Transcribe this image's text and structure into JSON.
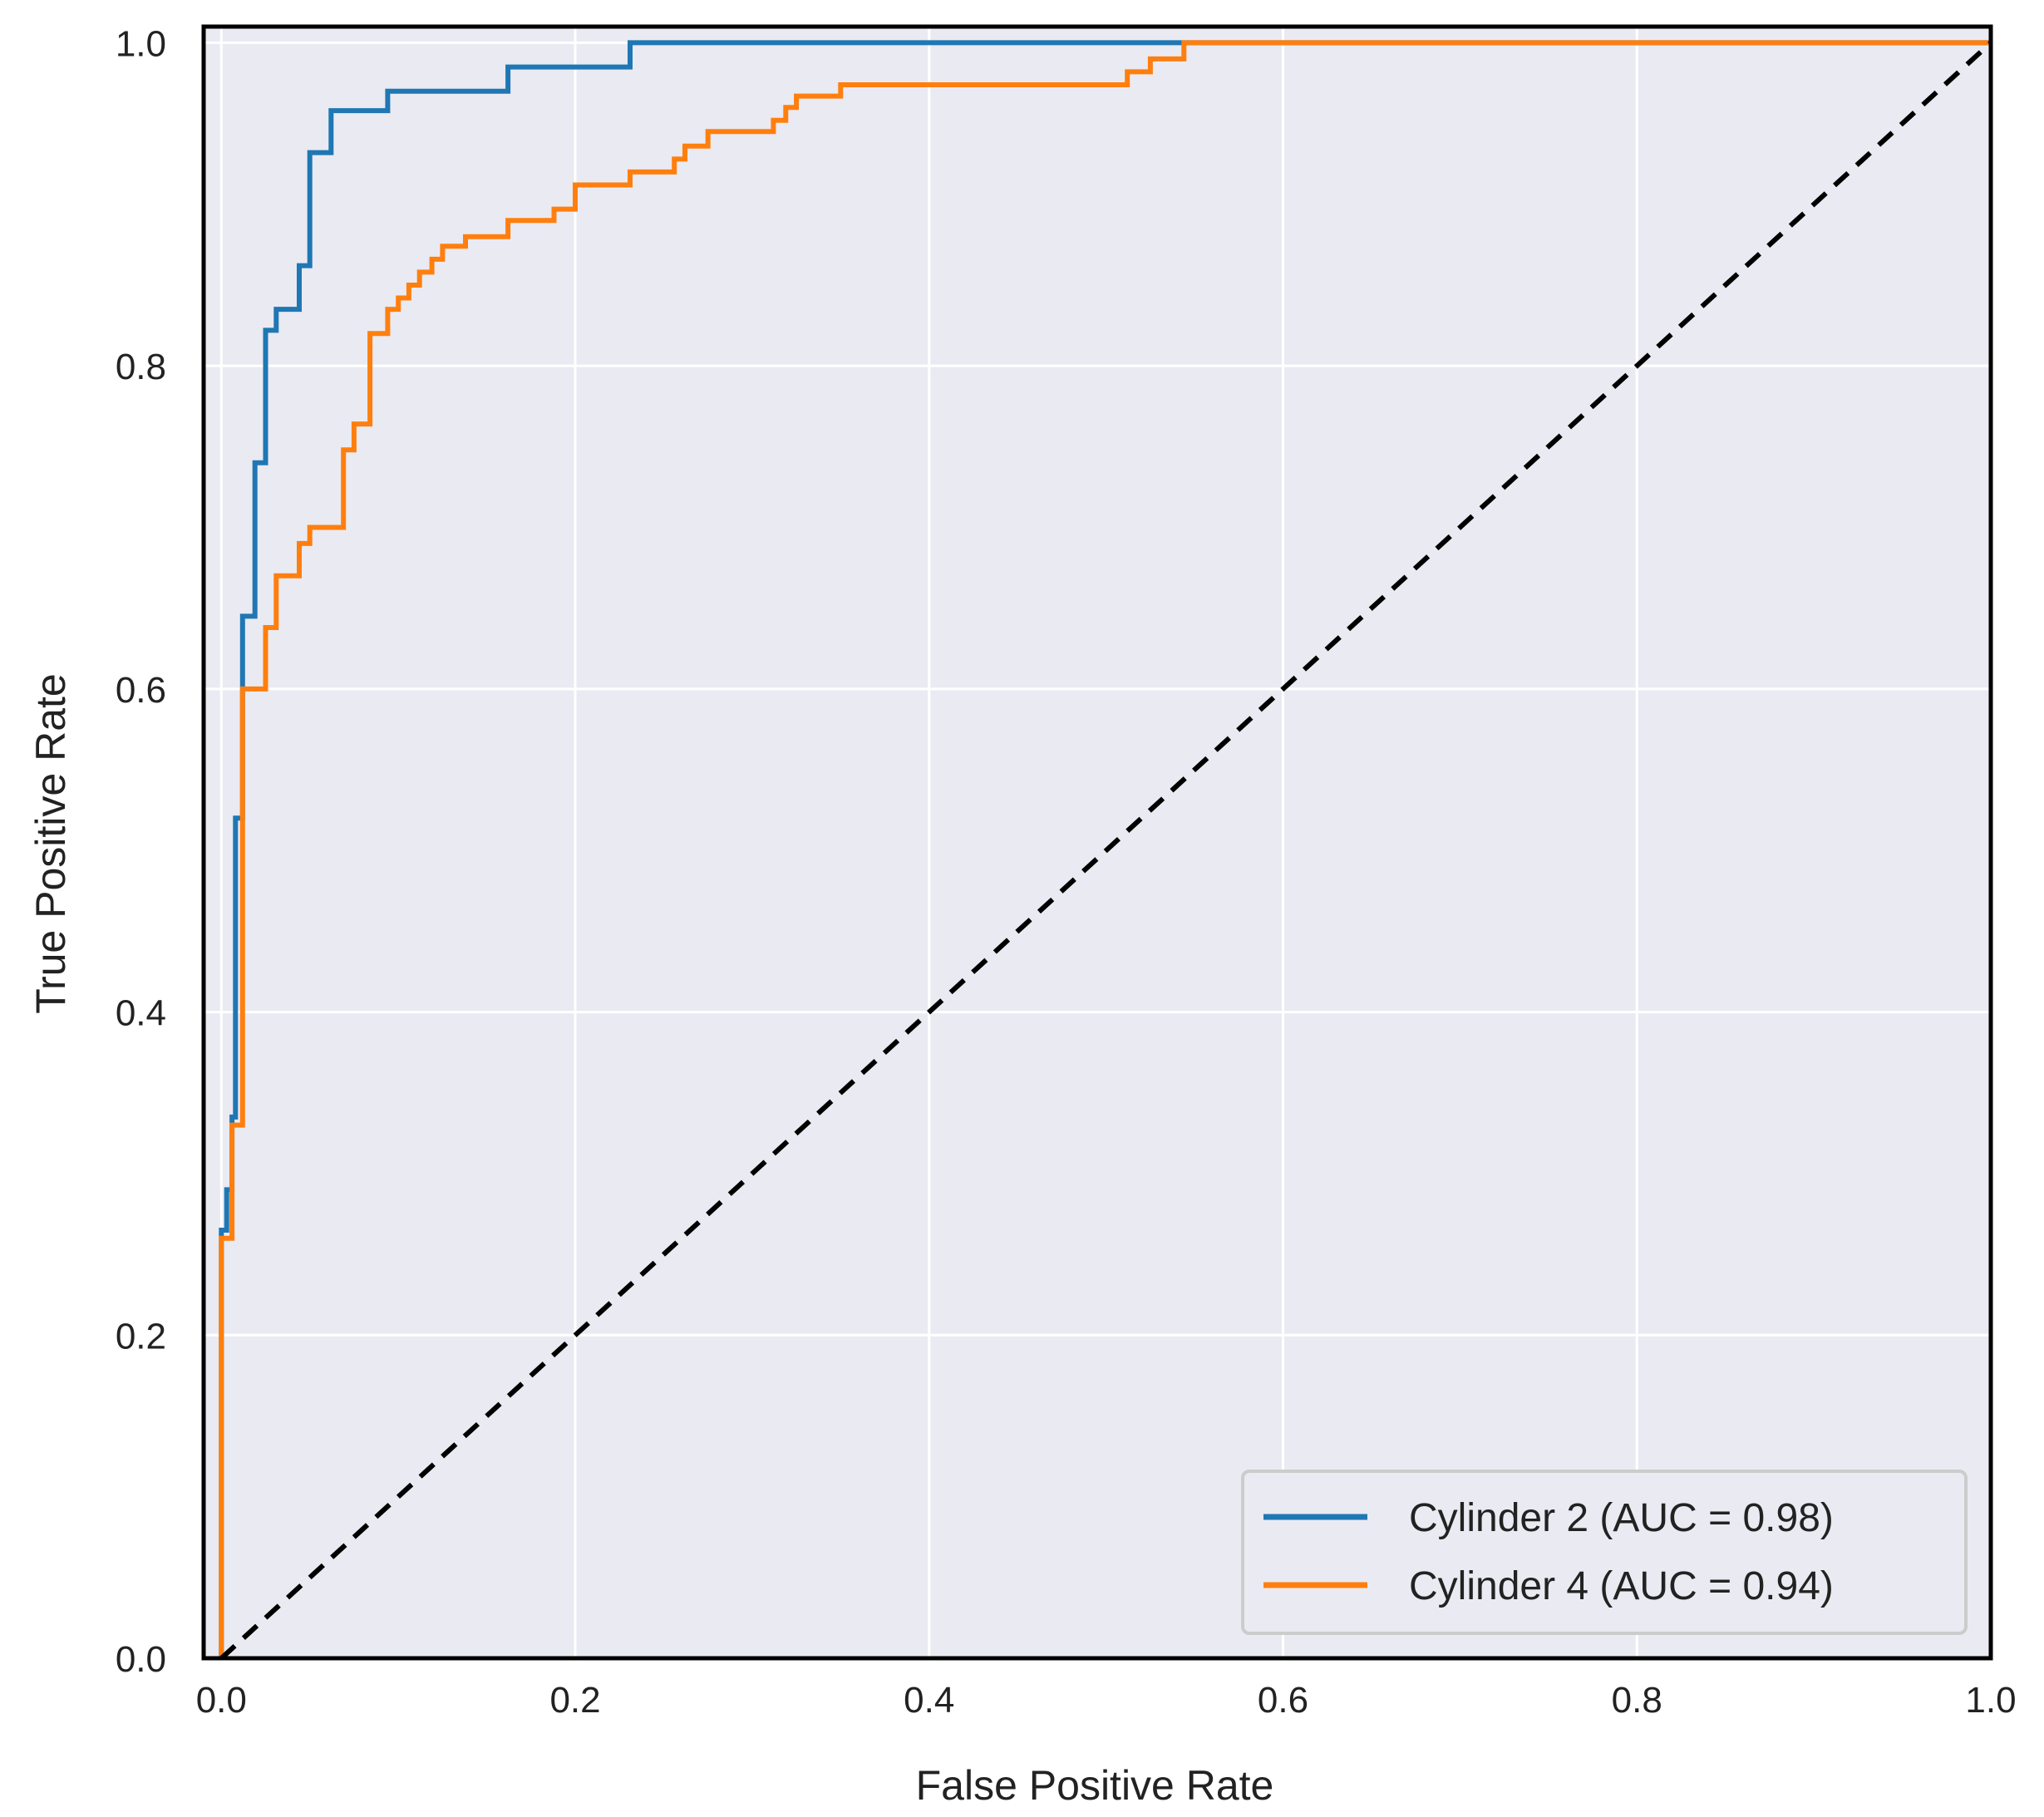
{
  "chart_data": {
    "type": "line",
    "xlabel": "False Positive Rate",
    "ylabel": "True Positive Rate",
    "xlim": [
      -0.01,
      1.0
    ],
    "ylim": [
      0.0,
      1.01
    ],
    "x_ticks": [
      0.0,
      0.2,
      0.4,
      0.6,
      0.8,
      1.0
    ],
    "x_tick_labels": [
      "0.0",
      "0.2",
      "0.4",
      "0.6",
      "0.8",
      "1.0"
    ],
    "y_ticks": [
      0.0,
      0.2,
      0.4,
      0.6,
      0.8,
      1.0
    ],
    "y_tick_labels": [
      "0.0",
      "0.2",
      "0.4",
      "0.6",
      "0.8",
      "1.0"
    ],
    "grid": true,
    "legend_position": "lower-right",
    "colors": {
      "plot_background": "#EAEAF2",
      "grid": "#FFFFFF",
      "frame": "#000000",
      "legend_background": "#EAEAF2",
      "legend_border": "#CCCCCC"
    },
    "series": [
      {
        "name": "Cylinder 2 (AUC = 0.98)",
        "color": "#1F77B4",
        "style": "solid",
        "points": [
          [
            0.0,
            0.0
          ],
          [
            0.0,
            0.265
          ],
          [
            0.003,
            0.265
          ],
          [
            0.003,
            0.29
          ],
          [
            0.006,
            0.29
          ],
          [
            0.006,
            0.335
          ],
          [
            0.008,
            0.335
          ],
          [
            0.008,
            0.52
          ],
          [
            0.012,
            0.52
          ],
          [
            0.012,
            0.645
          ],
          [
            0.019,
            0.645
          ],
          [
            0.019,
            0.74
          ],
          [
            0.025,
            0.74
          ],
          [
            0.025,
            0.822
          ],
          [
            0.031,
            0.822
          ],
          [
            0.031,
            0.835
          ],
          [
            0.044,
            0.835
          ],
          [
            0.044,
            0.862
          ],
          [
            0.05,
            0.862
          ],
          [
            0.05,
            0.932
          ],
          [
            0.062,
            0.932
          ],
          [
            0.062,
            0.958
          ],
          [
            0.094,
            0.958
          ],
          [
            0.094,
            0.97
          ],
          [
            0.162,
            0.97
          ],
          [
            0.162,
            0.985
          ],
          [
            0.231,
            0.985
          ],
          [
            0.231,
            1.0
          ],
          [
            1.0,
            1.0
          ]
        ]
      },
      {
        "name": "Cylinder 4 (AUC = 0.94)",
        "color": "#FF7F0E",
        "style": "solid",
        "points": [
          [
            0.0,
            0.0
          ],
          [
            0.0,
            0.26
          ],
          [
            0.006,
            0.26
          ],
          [
            0.006,
            0.33
          ],
          [
            0.012,
            0.33
          ],
          [
            0.012,
            0.6
          ],
          [
            0.025,
            0.6
          ],
          [
            0.025,
            0.638
          ],
          [
            0.031,
            0.638
          ],
          [
            0.031,
            0.67
          ],
          [
            0.044,
            0.67
          ],
          [
            0.044,
            0.69
          ],
          [
            0.05,
            0.69
          ],
          [
            0.05,
            0.7
          ],
          [
            0.069,
            0.7
          ],
          [
            0.069,
            0.748
          ],
          [
            0.075,
            0.748
          ],
          [
            0.075,
            0.764
          ],
          [
            0.084,
            0.764
          ],
          [
            0.084,
            0.82
          ],
          [
            0.094,
            0.82
          ],
          [
            0.094,
            0.835
          ],
          [
            0.1,
            0.835
          ],
          [
            0.1,
            0.842
          ],
          [
            0.106,
            0.842
          ],
          [
            0.106,
            0.85
          ],
          [
            0.112,
            0.85
          ],
          [
            0.112,
            0.858
          ],
          [
            0.119,
            0.858
          ],
          [
            0.119,
            0.866
          ],
          [
            0.125,
            0.866
          ],
          [
            0.125,
            0.874
          ],
          [
            0.138,
            0.874
          ],
          [
            0.138,
            0.88
          ],
          [
            0.162,
            0.88
          ],
          [
            0.162,
            0.89
          ],
          [
            0.188,
            0.89
          ],
          [
            0.188,
            0.897
          ],
          [
            0.2,
            0.897
          ],
          [
            0.2,
            0.912
          ],
          [
            0.231,
            0.912
          ],
          [
            0.231,
            0.92
          ],
          [
            0.256,
            0.92
          ],
          [
            0.256,
            0.928
          ],
          [
            0.262,
            0.928
          ],
          [
            0.262,
            0.936
          ],
          [
            0.275,
            0.936
          ],
          [
            0.275,
            0.945
          ],
          [
            0.312,
            0.945
          ],
          [
            0.312,
            0.952
          ],
          [
            0.319,
            0.952
          ],
          [
            0.319,
            0.96
          ],
          [
            0.325,
            0.96
          ],
          [
            0.325,
            0.967
          ],
          [
            0.35,
            0.967
          ],
          [
            0.35,
            0.974
          ],
          [
            0.512,
            0.974
          ],
          [
            0.512,
            0.982
          ],
          [
            0.525,
            0.982
          ],
          [
            0.525,
            0.99
          ],
          [
            0.544,
            0.99
          ],
          [
            0.544,
            1.0
          ],
          [
            1.0,
            1.0
          ]
        ]
      },
      {
        "name": "",
        "color": "#000000",
        "style": "dashed",
        "points": [
          [
            0.0,
            0.0
          ],
          [
            1.0,
            1.0
          ]
        ]
      }
    ]
  }
}
